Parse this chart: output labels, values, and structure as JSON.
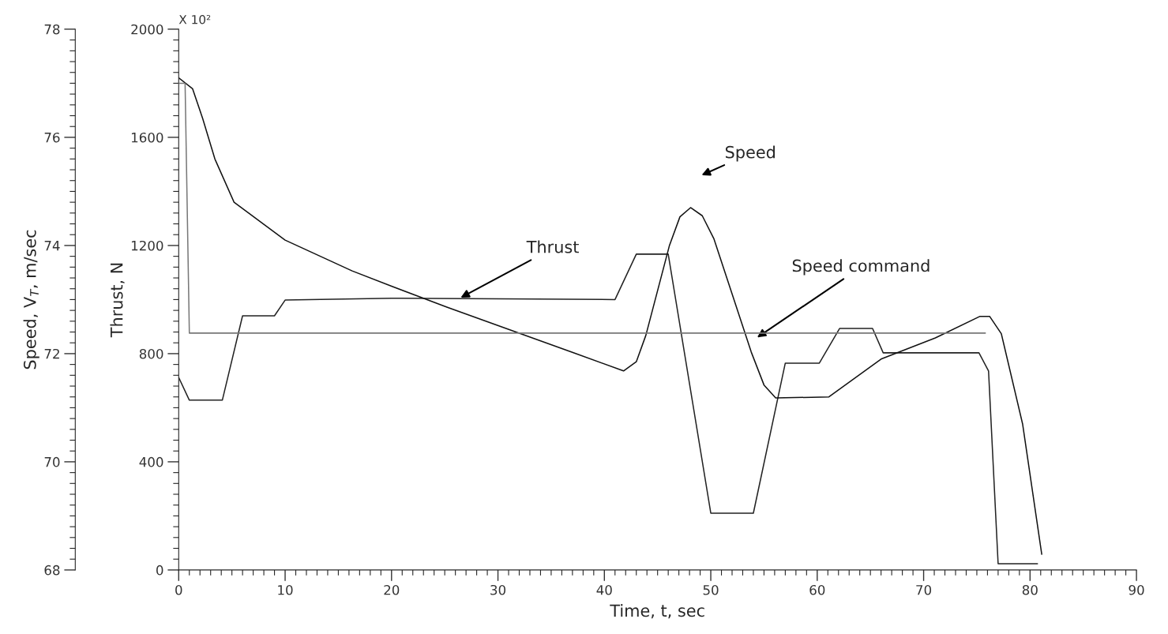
{
  "chart_data": {
    "type": "line",
    "xlabel": "Time, t, sec",
    "ylabel": "Thrust, N",
    "y2label": "Speed, V$_{T}$, m/sec",
    "xlim": [
      0,
      90
    ],
    "ylim": [
      0,
      2000
    ],
    "y2lim": [
      68,
      78
    ],
    "xticks": [
      0,
      {
        "value": 1,
        "label": null
      },
      {
        "value": 2,
        "label": null
      },
      {
        "value": 3,
        "label": null
      },
      {
        "value": 4,
        "label": null
      },
      {
        "value": 5,
        "label": null
      },
      {
        "value": 6,
        "label": null
      },
      {
        "value": 7,
        "label": null
      },
      {
        "value": 8,
        "label": null
      },
      {
        "value": 9,
        "label": null
      },
      10,
      {
        "value": 11,
        "label": null
      },
      {
        "value": 12,
        "label": null
      },
      {
        "value": 13,
        "label": null
      },
      {
        "value": 14,
        "label": null
      },
      {
        "value": 15,
        "label": null
      },
      {
        "value": 16,
        "label": null
      },
      {
        "value": 17,
        "label": null
      },
      {
        "value": 18,
        "label": null
      },
      {
        "value": 19,
        "label": null
      },
      20,
      {
        "value": 21,
        "label": null
      },
      {
        "value": 22,
        "label": null
      },
      {
        "value": 23,
        "label": null
      },
      {
        "value": 24,
        "label": null
      },
      {
        "value": 25,
        "label": null
      },
      {
        "value": 26,
        "label": null
      },
      {
        "value": 27,
        "label": null
      },
      {
        "value": 28,
        "label": null
      },
      {
        "value": 29,
        "label": null
      },
      30,
      {
        "value": 31,
        "label": null
      },
      {
        "value": 32,
        "label": null
      },
      {
        "value": 33,
        "label": null
      },
      {
        "value": 34,
        "label": null
      },
      {
        "value": 35,
        "label": null
      },
      {
        "value": 36,
        "label": null
      },
      {
        "value": 37,
        "label": null
      },
      {
        "value": 38,
        "label": null
      },
      {
        "value": 39,
        "label": null
      },
      40,
      {
        "value": 41,
        "label": null
      },
      {
        "value": 42,
        "label": null
      },
      {
        "value": 43,
        "label": null
      },
      {
        "value": 44,
        "label": null
      },
      {
        "value": 45,
        "label": null
      },
      {
        "value": 46,
        "label": null
      },
      {
        "value": 47,
        "label": null
      },
      {
        "value": 48,
        "label": null
      },
      {
        "value": 49,
        "label": null
      },
      50,
      {
        "value": 51,
        "label": null
      },
      {
        "value": 52,
        "label": null
      },
      {
        "value": 53,
        "label": null
      },
      {
        "value": 54,
        "label": null
      },
      {
        "value": 55,
        "label": null
      },
      {
        "value": 56,
        "label": null
      },
      {
        "value": 57,
        "label": null
      },
      {
        "value": 58,
        "label": null
      },
      {
        "value": 59,
        "label": null
      },
      60,
      {
        "value": 61,
        "label": null
      },
      {
        "value": 62,
        "label": null
      },
      {
        "value": 63,
        "label": null
      },
      {
        "value": 64,
        "label": null
      },
      {
        "value": 65,
        "label": null
      },
      {
        "value": 66,
        "label": null
      },
      {
        "value": 67,
        "label": null
      },
      {
        "value": 68,
        "label": null
      },
      {
        "value": 69,
        "label": null
      },
      70,
      {
        "value": 71,
        "label": null
      },
      {
        "value": 72,
        "label": null
      },
      {
        "value": 73,
        "label": null
      },
      {
        "value": 74,
        "label": null
      },
      {
        "value": 75,
        "label": null
      },
      {
        "value": 76,
        "label": null
      },
      {
        "value": 77,
        "label": null
      },
      {
        "value": 78,
        "label": null
      },
      {
        "value": 79,
        "label": null
      },
      80,
      {
        "value": 81,
        "label": null
      },
      {
        "value": 82,
        "label": null
      },
      {
        "value": 83,
        "label": null
      },
      {
        "value": 84,
        "label": null
      },
      {
        "value": 85,
        "label": null
      },
      {
        "value": 86,
        "label": null
      },
      {
        "value": 87,
        "label": null
      },
      {
        "value": 88,
        "label": null
      },
      {
        "value": 89,
        "label": null
      },
      90
    ],
    "yticks": [
      0,
      {
        "value": 40,
        "label": null
      },
      {
        "value": 80,
        "label": null
      },
      {
        "value": 120,
        "label": null
      },
      {
        "value": 160,
        "label": null
      },
      {
        "value": 200,
        "label": null
      },
      {
        "value": 240,
        "label": null
      },
      {
        "value": 280,
        "label": null
      },
      {
        "value": 320,
        "label": null
      },
      {
        "value": 360,
        "label": null
      },
      400,
      {
        "value": 440,
        "label": null
      },
      {
        "value": 480,
        "label": null
      },
      {
        "value": 520,
        "label": null
      },
      {
        "value": 560,
        "label": null
      },
      {
        "value": 600,
        "label": null
      },
      {
        "value": 640,
        "label": null
      },
      {
        "value": 680,
        "label": null
      },
      {
        "value": 720,
        "label": null
      },
      {
        "value": 760,
        "label": null
      },
      800,
      {
        "value": 840,
        "label": null
      },
      {
        "value": 880,
        "label": null
      },
      {
        "value": 920,
        "label": null
      },
      {
        "value": 960,
        "label": null
      },
      {
        "value": 1000,
        "label": null
      },
      {
        "value": 1040,
        "label": null
      },
      {
        "value": 1080,
        "label": null
      },
      {
        "value": 1120,
        "label": null
      },
      {
        "value": 1160,
        "label": null
      },
      1200,
      {
        "value": 1240,
        "label": null
      },
      {
        "value": 1280,
        "label": null
      },
      {
        "value": 1320,
        "label": null
      },
      {
        "value": 1360,
        "label": null
      },
      {
        "value": 1400,
        "label": null
      },
      {
        "value": 1440,
        "label": null
      },
      {
        "value": 1480,
        "label": null
      },
      {
        "value": 1520,
        "label": null
      },
      {
        "value": 1560,
        "label": null
      },
      1600,
      {
        "value": 1640,
        "label": null
      },
      {
        "value": 1680,
        "label": null
      },
      {
        "value": 1720,
        "label": null
      },
      {
        "value": 1760,
        "label": null
      },
      {
        "value": 1800,
        "label": null
      },
      {
        "value": 1840,
        "label": null
      },
      {
        "value": 1880,
        "label": null
      },
      {
        "value": 1920,
        "label": null
      },
      {
        "value": 1960,
        "label": null
      },
      2000
    ],
    "y2ticks": [
      68,
      {
        "value": 68.2,
        "label": null
      },
      {
        "value": 68.4,
        "label": null
      },
      {
        "value": 68.6,
        "label": null
      },
      {
        "value": 68.8,
        "label": null
      },
      {
        "value": 69,
        "label": null
      },
      {
        "value": 69.2,
        "label": null
      },
      {
        "value": 69.4,
        "label": null
      },
      {
        "value": 69.6,
        "label": null
      },
      {
        "value": 69.8,
        "label": null
      },
      70,
      {
        "value": 70.2,
        "label": null
      },
      {
        "value": 70.4,
        "label": null
      },
      {
        "value": 70.6,
        "label": null
      },
      {
        "value": 70.8,
        "label": null
      },
      {
        "value": 71,
        "label": null
      },
      {
        "value": 71.2,
        "label": null
      },
      {
        "value": 71.4,
        "label": null
      },
      {
        "value": 71.6,
        "label": null
      },
      {
        "value": 71.8,
        "label": null
      },
      72,
      {
        "value": 72.2,
        "label": null
      },
      {
        "value": 72.4,
        "label": null
      },
      {
        "value": 72.6,
        "label": null
      },
      {
        "value": 72.8,
        "label": null
      },
      {
        "value": 73,
        "label": null
      },
      {
        "value": 73.2,
        "label": null
      },
      {
        "value": 73.4,
        "label": null
      },
      {
        "value": 73.6,
        "label": null
      },
      {
        "value": 73.8,
        "label": null
      },
      74,
      {
        "value": 74.2,
        "label": null
      },
      {
        "value": 74.4,
        "label": null
      },
      {
        "value": 74.6,
        "label": null
      },
      {
        "value": 74.8,
        "label": null
      },
      {
        "value": 75,
        "label": null
      },
      {
        "value": 75.2,
        "label": null
      },
      {
        "value": 75.4,
        "label": null
      },
      {
        "value": 75.6,
        "label": null
      },
      {
        "value": 75.8,
        "label": null
      },
      76,
      {
        "value": 76.2,
        "label": null
      },
      {
        "value": 76.4,
        "label": null
      },
      {
        "value": 76.6,
        "label": null
      },
      {
        "value": 76.8,
        "label": null
      },
      {
        "value": 77,
        "label": null
      },
      {
        "value": 77.2,
        "label": null
      },
      {
        "value": 77.4,
        "label": null
      },
      {
        "value": 77.6,
        "label": null
      },
      {
        "value": 77.8,
        "label": null
      },
      78
    ],
    "grid": false,
    "legend": false,
    "series": [
      {
        "color": "#222222",
        "line_style": "solid",
        "x": [
          0,
          1,
          4.1,
          6,
          9,
          10,
          20,
          41,
          43,
          46,
          50,
          54,
          57,
          60.2,
          62.1,
          65.2,
          66.2,
          75.2,
          76.1,
          77,
          80.7
        ],
        "values": [
          712,
          628,
          628,
          940,
          940,
          998,
          1005,
          1000,
          1168,
          1168,
          210,
          210,
          765,
          765,
          893,
          893,
          803,
          803,
          736,
          23,
          23
        ]
      },
      {
        "axis": "y2",
        "color": "#111111",
        "line_style": "solid",
        "x": [
          0,
          1.3,
          2.25,
          3.4,
          5.2,
          10,
          16.3,
          20.1,
          25.2,
          32.1,
          37.2,
          41.8,
          43,
          43.9,
          46.1,
          47.1,
          48.1,
          49.2,
          50.3,
          53.8,
          55,
          56.1,
          61.1,
          66,
          71.1,
          75.3,
          76.2,
          77.3,
          79.3,
          81.1
        ],
        "values": [
          77.1,
          76.9,
          76.35,
          75.6,
          74.8,
          74.1,
          73.53,
          73.24,
          72.86,
          72.37,
          72.01,
          71.68,
          71.85,
          72.34,
          73.99,
          74.53,
          74.7,
          74.55,
          74.12,
          72.03,
          71.42,
          71.18,
          71.2,
          71.9,
          72.29,
          72.69,
          72.69,
          72.37,
          70.7,
          68.29
        ]
      },
      {
        "axis": "y2",
        "color": "#777777",
        "line_style": "solid",
        "x": [
          0,
          0.6,
          1.0,
          75.8
        ],
        "values": [
          77.0,
          77.0,
          72.38,
          72.38
        ]
      }
    ],
    "annotations": [
      "X 10²",
      {
        "text": "Thrust",
        "x": 26.5,
        "y": 1007
      },
      "Speed",
      "Speed command"
    ]
  }
}
